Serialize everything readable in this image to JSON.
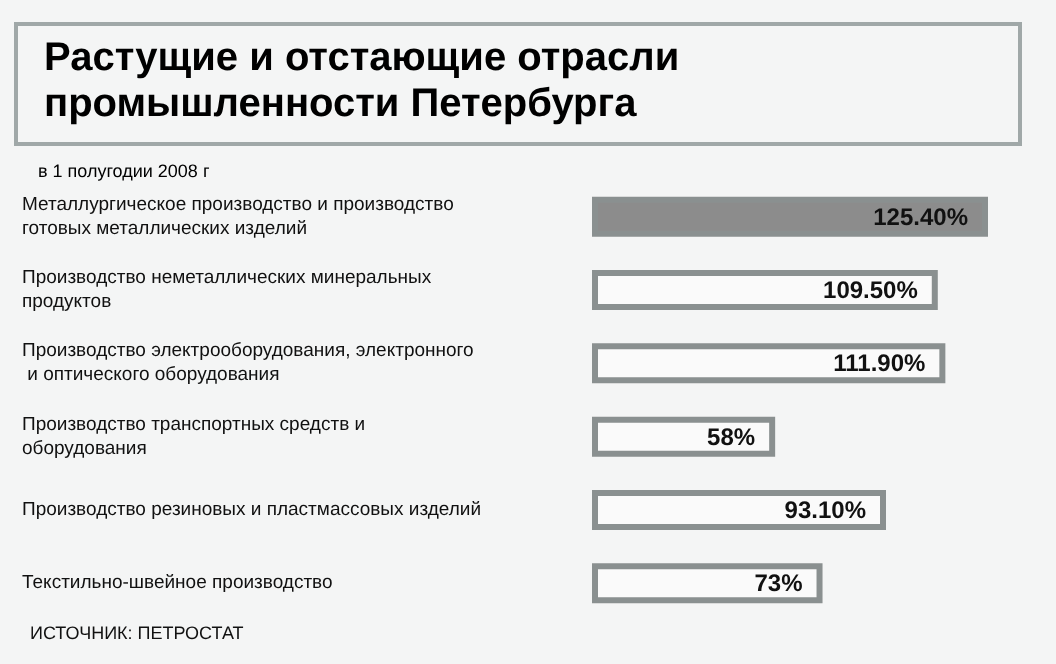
{
  "chart_data": {
    "type": "bar",
    "orientation": "horizontal",
    "title": "Растущие и отстающие отрасли промышленности Петербурга",
    "subtitle": "в 1 полугодии 2008 г",
    "categories": [
      "Металлургическое производство и производство готовых металлических изделий",
      "Производство неметаллических минеральных продуктов",
      "Производство электрооборудования, электронного и оптического оборудования",
      "Производство транспортных средств и оборудования",
      "Производство резиновых и пластмассовых изделий",
      "Текстильно-швейное производство"
    ],
    "values": [
      125.4,
      109.5,
      111.9,
      58,
      93.1,
      73
    ],
    "value_labels": [
      "125.40%",
      "109.50%",
      "111.90%",
      "58%",
      "93.10%",
      "73%"
    ],
    "colors": [
      "#8c8c8c",
      "#fafafa",
      "#fafafa",
      "#fafafa",
      "#fafafa",
      "#fafafa"
    ],
    "annotations": [
      "ИСТОЧНИК: ПЕТРОСТАТ"
    ]
  }
}
